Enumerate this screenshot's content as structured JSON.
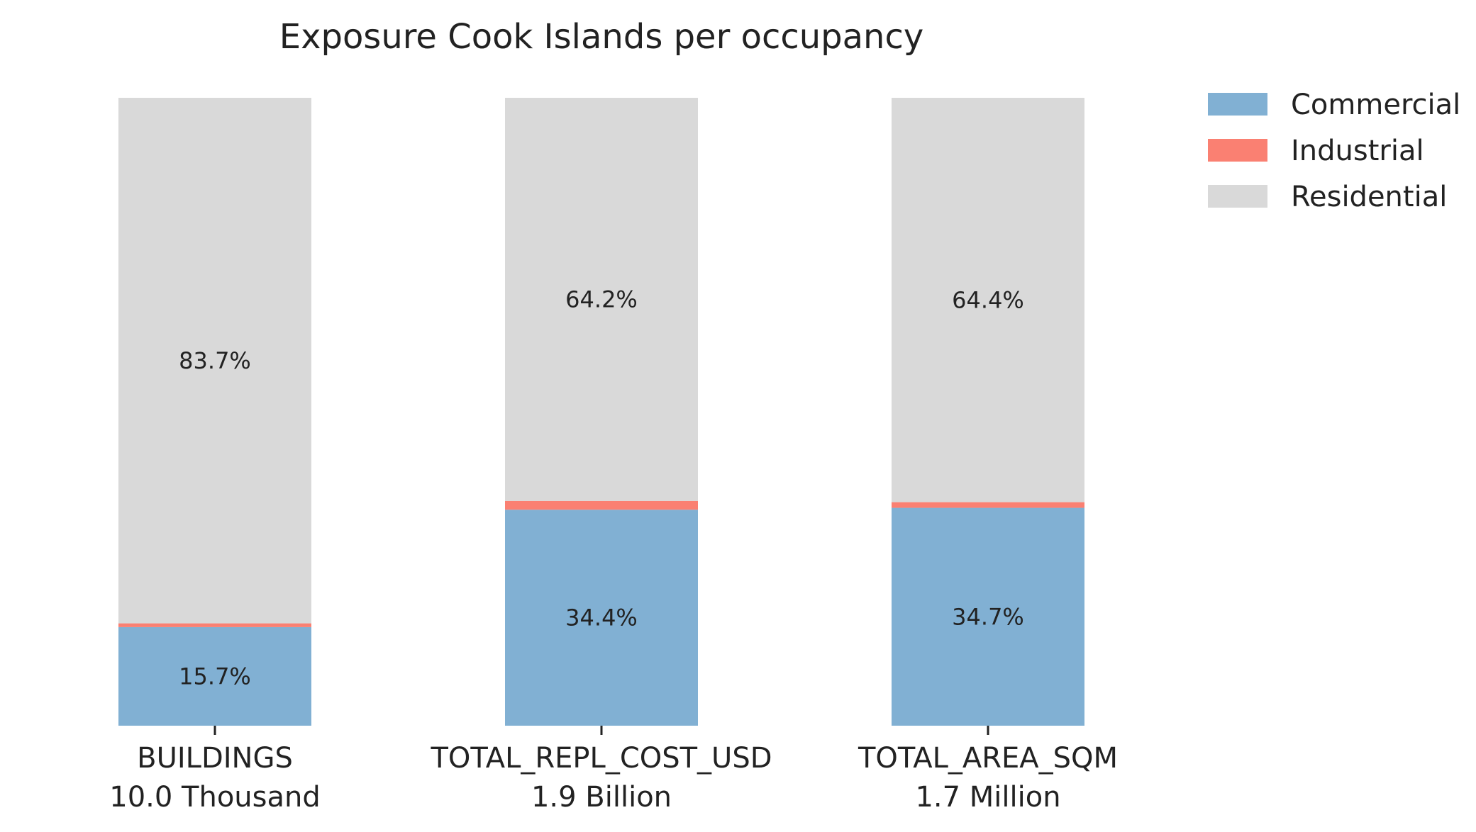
{
  "chart_data": {
    "type": "bar",
    "stacked": true,
    "title": "Exposure Cook Islands per occupancy",
    "categories": [
      {
        "name": "BUILDINGS",
        "total": "10.0 Thousand"
      },
      {
        "name": "TOTAL_REPL_COST_USD",
        "total": "1.9 Billion"
      },
      {
        "name": "TOTAL_AREA_SQM",
        "total": "1.7 Million"
      }
    ],
    "series": [
      {
        "name": "Commercial",
        "color": "#81b0d3",
        "values": [
          15.7,
          34.4,
          34.7
        ],
        "labels": [
          "15.7%",
          "34.4%",
          "34.7%"
        ]
      },
      {
        "name": "Industrial",
        "color": "#fa8072",
        "values": [
          0.6,
          1.4,
          0.9
        ],
        "labels": [
          "",
          "",
          ""
        ]
      },
      {
        "name": "Residential",
        "color": "#d9d9d9",
        "values": [
          83.7,
          64.2,
          64.4
        ],
        "labels": [
          "83.7%",
          "64.2%",
          "64.4%"
        ]
      }
    ],
    "ylim": [
      0,
      100
    ],
    "legend_position": "top-right",
    "grid": false
  }
}
